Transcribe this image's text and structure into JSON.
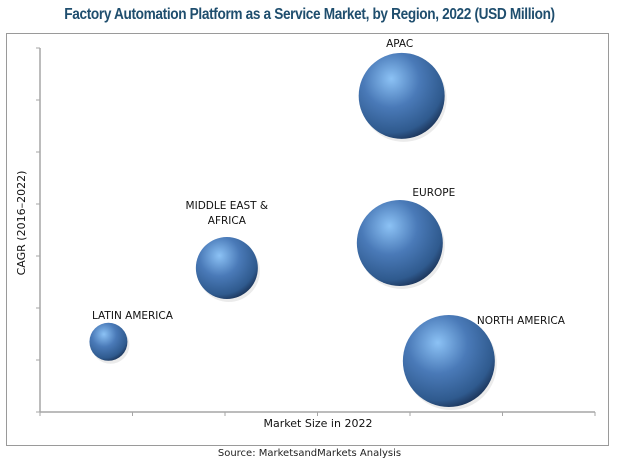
{
  "chart_data": {
    "type": "scatter",
    "subtype": "bubble",
    "title": "Factory Automation Platform as a Service Market, by Region, 2022 (USD Million)",
    "xlabel": "Market Size in 2022",
    "ylabel": "CAGR (2016–2022)",
    "xlim": [
      0,
      6
    ],
    "ylim": [
      0,
      7
    ],
    "x_ticks": 6,
    "y_ticks": 7,
    "tick_labels_shown": false,
    "grid": false,
    "legend": "none",
    "points": [
      {
        "label": [
          "APAC"
        ],
        "x": 3.91,
        "y": 6.08,
        "size": 43
      },
      {
        "label": [
          "EUROPE"
        ],
        "x": 3.89,
        "y": 3.25,
        "size": 43
      },
      {
        "label": [
          "NORTH AMERICA"
        ],
        "x": 4.42,
        "y": 0.98,
        "size": 46
      },
      {
        "label": [
          "MIDDLE EAST &",
          "AFRICA"
        ],
        "x": 2.02,
        "y": 2.77,
        "size": 31
      },
      {
        "label": [
          "LATIN AMERICA"
        ],
        "x": 0.74,
        "y": 1.35,
        "size": 19
      }
    ],
    "colors": {
      "highlight": "#8cc2f5",
      "mid": "#4a7ab8",
      "shadow": "#1c355a",
      "axis": "#a6a6a6",
      "title": "#1f4e6e"
    }
  },
  "source": "Source: MarketsandMarkets Analysis"
}
